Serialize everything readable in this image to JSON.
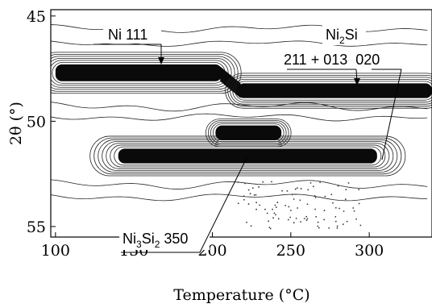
{
  "chart_data": {
    "type": "heatmap",
    "title": "",
    "xlabel": "Temperature (°C)",
    "ylabel": "2θ (°)",
    "xlim": [
      97,
      340
    ],
    "ylim": [
      55.5,
      44.7
    ],
    "x_ticks": [
      100,
      150,
      200,
      250,
      300
    ],
    "y_ticks": [
      45,
      50,
      55
    ],
    "x_tick_labels": [
      "100",
      "150",
      "200",
      "250",
      "300"
    ],
    "y_tick_labels": [
      "45",
      "50",
      "55"
    ],
    "grid": false,
    "legend": "none",
    "colors": {
      "contour": "#1c1c1c",
      "peak": "#0a0a0a",
      "background": "#ffffff"
    },
    "annotations": {
      "ni111": "Ni 111",
      "ni2si": "Ni",
      "ni2si_sub": "2",
      "ni2si_tail": "Si",
      "ni2si_refl": "211 + 013  020",
      "ni3si2": "Ni",
      "ni3si2_sub1": "3",
      "ni3si2_mid": "Si",
      "ni3si2_sub2": "2",
      "ni3si2_refl": " 350"
    },
    "bands": [
      {
        "name": "Ni 111",
        "temp": [
          97,
          340
        ],
        "two_theta_start": 47.4,
        "two_theta_end": 48.4,
        "shift_at": 215,
        "intensity_until": 208,
        "strong": true
      },
      {
        "name": "Ni2Si 211+013",
        "temp": [
          205,
          340
        ],
        "two_theta": 48.4,
        "strong": true
      },
      {
        "name": "Ni2Si 020",
        "temp": [
          130,
          315
        ],
        "two_theta": 51.6,
        "strong": true
      },
      {
        "name": "Ni3Si2 350",
        "temp": [
          198,
          245
        ],
        "two_theta": 50.5,
        "strong": true
      }
    ]
  }
}
